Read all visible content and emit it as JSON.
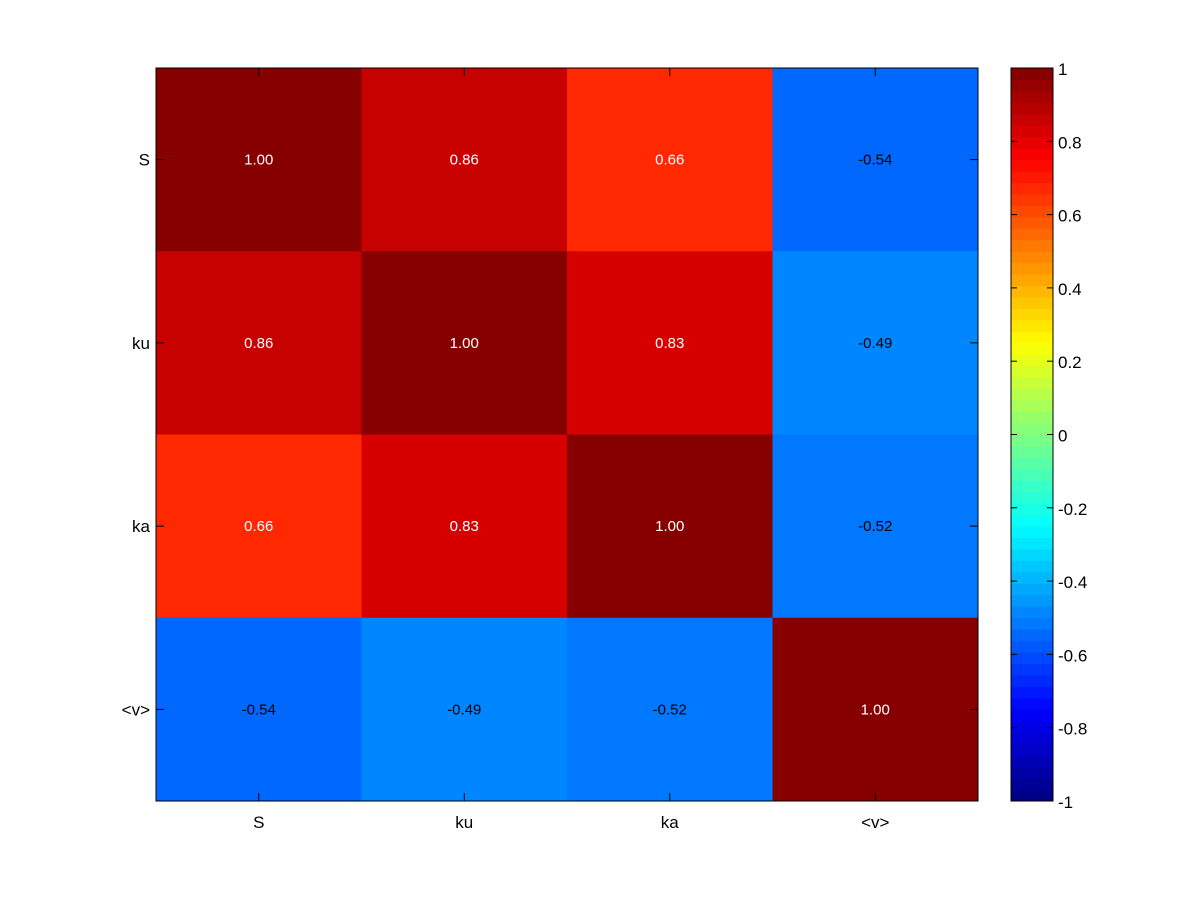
{
  "chart_data": {
    "type": "heatmap",
    "title": "",
    "xlabel": "",
    "ylabel": "",
    "x_categories": [
      "S",
      "ku",
      "ka",
      "<v>"
    ],
    "y_categories": [
      "S",
      "ku",
      "ka",
      "<v>"
    ],
    "values": [
      [
        1.0,
        0.86,
        0.66,
        -0.54
      ],
      [
        0.86,
        1.0,
        0.83,
        -0.49
      ],
      [
        0.66,
        0.83,
        1.0,
        -0.52
      ],
      [
        -0.54,
        -0.49,
        -0.52,
        1.0
      ]
    ],
    "value_labels": [
      [
        "1.00",
        "0.86",
        "0.66",
        "-0.54"
      ],
      [
        "0.86",
        "1.00",
        "0.83",
        "-0.49"
      ],
      [
        "0.66",
        "0.83",
        "1.00",
        "-0.52"
      ],
      [
        "-0.54",
        "-0.49",
        "-0.52",
        "1.00"
      ]
    ],
    "colorbar": {
      "colormap": "jet",
      "range": [
        -1,
        1
      ],
      "ticks": [
        1,
        0.8,
        0.6,
        0.4,
        0.2,
        0,
        -0.2,
        -0.4,
        -0.6,
        -0.8,
        -1
      ],
      "tick_labels": [
        "1",
        "0.8",
        "0.6",
        "0.4",
        "0.2",
        "0",
        "-0.2",
        "-0.4",
        "-0.6",
        "-0.8",
        "-1"
      ],
      "placement": "right"
    },
    "grid": false,
    "label_colors": {
      "high": "#ffffff",
      "low": "#000000"
    }
  }
}
